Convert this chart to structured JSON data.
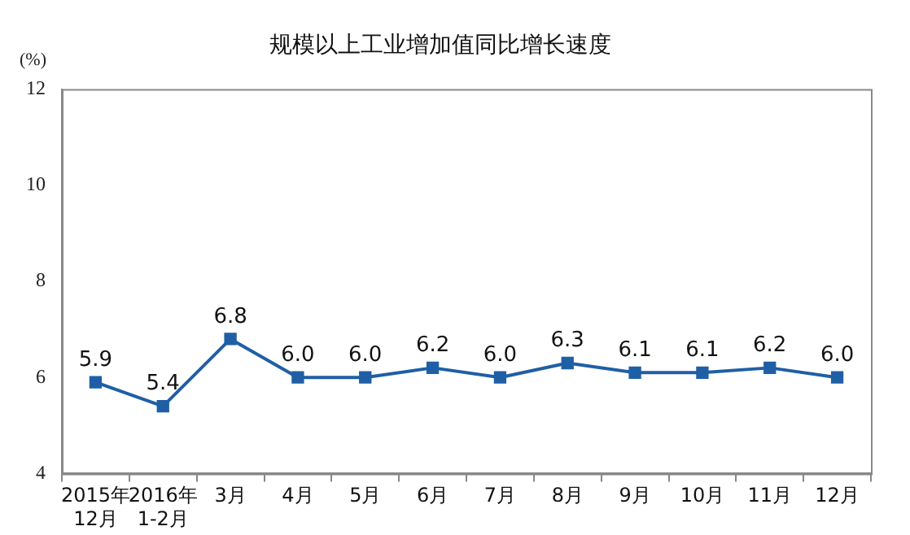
{
  "chart_data": {
    "type": "line",
    "title": "规模以上工业增加值同比增长速度",
    "ylabel": "(%)",
    "categories": [
      "2015年\n12月",
      "2016年\n1-2月",
      "3月",
      "4月",
      "5月",
      "6月",
      "7月",
      "8月",
      "9月",
      "10月",
      "11月",
      "12月"
    ],
    "series": [
      {
        "color": "#1f5fa5",
        "values": [
          5.9,
          5.4,
          6.8,
          6.0,
          6.0,
          6.2,
          6.0,
          6.3,
          6.1,
          6.1,
          6.2,
          6.0
        ],
        "value_labels": [
          "5.9",
          "5.4",
          "6.8",
          "6.0",
          "6.0",
          "6.2",
          "6.0",
          "6.3",
          "6.1",
          "6.1",
          "6.2",
          "6.0"
        ]
      }
    ],
    "ylim": [
      4,
      12
    ],
    "yticks": [
      4,
      6,
      8,
      10,
      12
    ],
    "grid": false,
    "legend": false,
    "marker": "square",
    "line_style": "solid"
  }
}
